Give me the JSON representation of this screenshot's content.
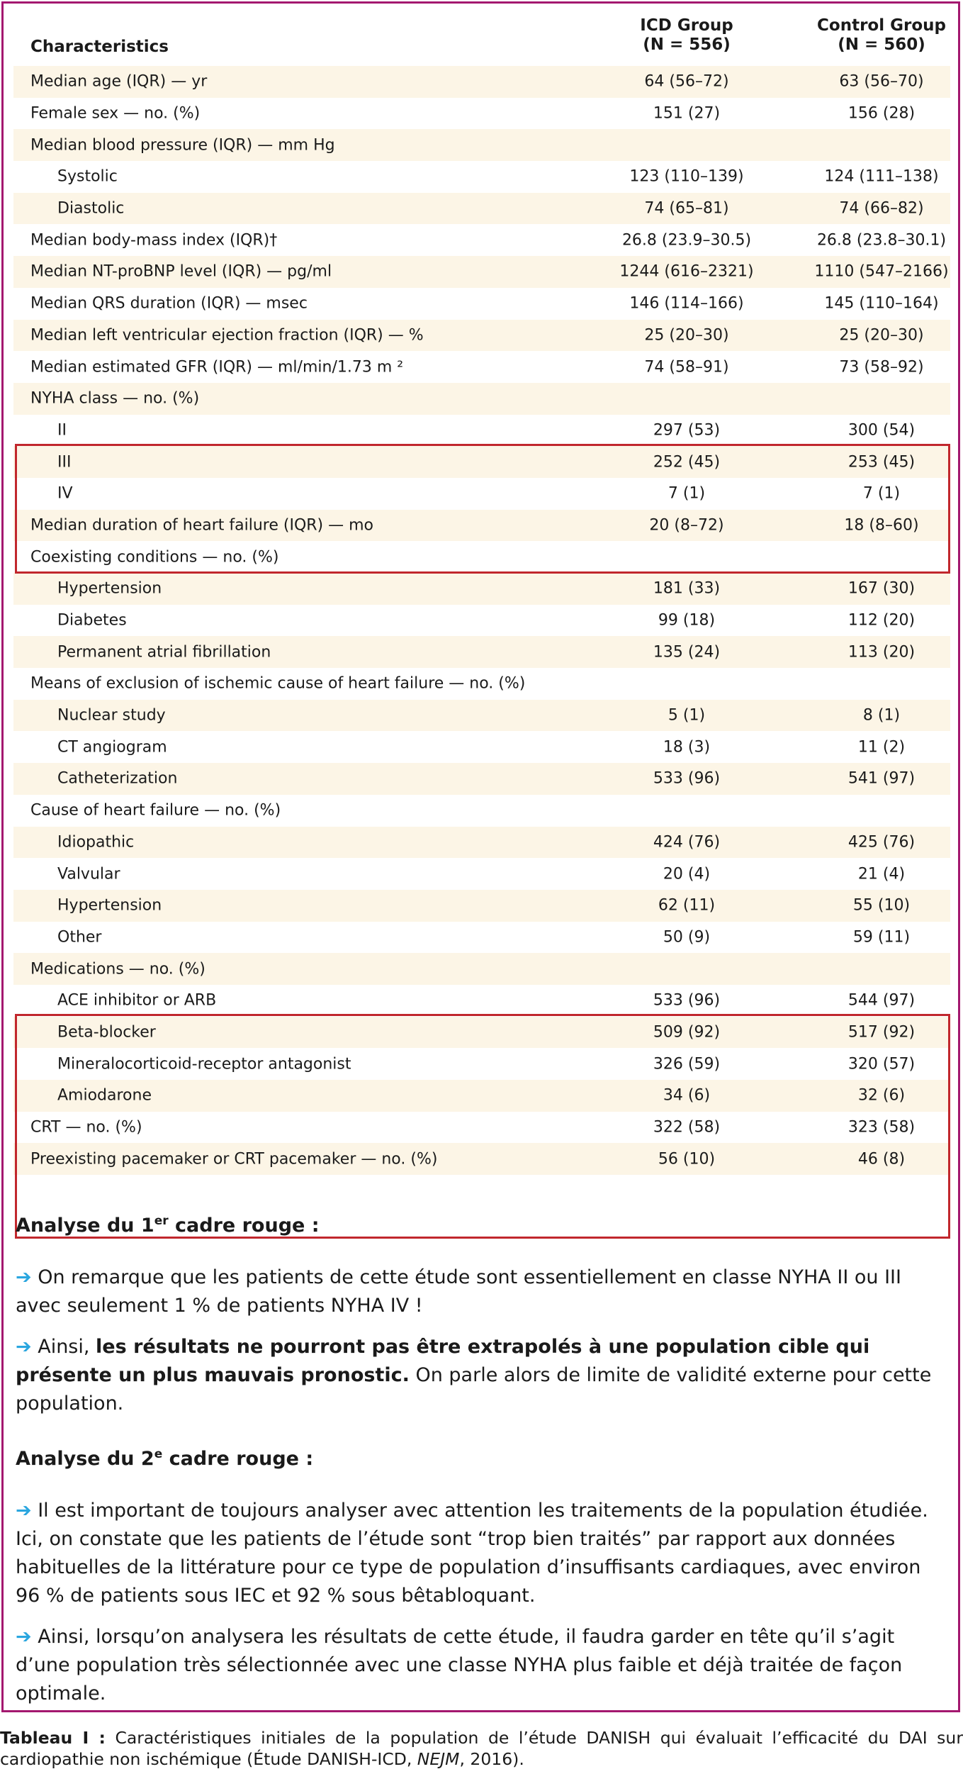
{
  "table": {
    "headers": {
      "characteristics": "Characteristics",
      "icd_line1": "ICD Group",
      "icd_line2": "(N = 556)",
      "control_line1": "Control Group",
      "control_line2": "(N = 560)"
    },
    "rows": [
      {
        "label": "Median age (IQR) — yr",
        "icd": "64 (56–72)",
        "control": "63 (56–70)",
        "indent": false
      },
      {
        "label": "Female sex — no. (%)",
        "icd": "151 (27)",
        "control": "156 (28)",
        "indent": false
      },
      {
        "label": "Median blood pressure (IQR) — mm Hg",
        "icd": "",
        "control": "",
        "indent": false
      },
      {
        "label": "Systolic",
        "icd": "123 (110–139)",
        "control": "124 (111–138)",
        "indent": true
      },
      {
        "label": "Diastolic",
        "icd": "74 (65–81)",
        "control": "74 (66–82)",
        "indent": true
      },
      {
        "label": "Median body-mass index (IQR)†",
        "icd": "26.8 (23.9–30.5)",
        "control": "26.8 (23.8–30.1)",
        "indent": false
      },
      {
        "label": "Median NT-proBNP level (IQR) — pg/ml",
        "icd": "1244 (616–2321)",
        "control": "1110 (547–2166)",
        "indent": false
      },
      {
        "label": "Median QRS duration (IQR) — msec",
        "icd": "146 (114–166)",
        "control": "145 (110–164)",
        "indent": false
      },
      {
        "label": "Median left ventricular ejection fraction (IQR) — %",
        "icd": "25 (20–30)",
        "control": "25 (20–30)",
        "indent": false
      },
      {
        "label": "Median estimated GFR (IQR) — ml/min/1.73 m ²",
        "icd": "74 (58–91)",
        "control": "73 (58–92)",
        "indent": false
      },
      {
        "label": "NYHA class — no. (%)",
        "icd": "",
        "control": "",
        "indent": false
      },
      {
        "label": "II",
        "icd": "297 (53)",
        "control": "300 (54)",
        "indent": true
      },
      {
        "label": "III",
        "icd": "252 (45)",
        "control": "253 (45)",
        "indent": true
      },
      {
        "label": "IV",
        "icd": "7 (1)",
        "control": "7 (1)",
        "indent": true
      },
      {
        "label": "Median duration of heart failure (IQR) — mo",
        "icd": "20 (8–72)",
        "control": "18 (8–60)",
        "indent": false
      },
      {
        "label": "Coexisting conditions — no. (%)",
        "icd": "",
        "control": "",
        "indent": false
      },
      {
        "label": "Hypertension",
        "icd": "181 (33)",
        "control": "167 (30)",
        "indent": true
      },
      {
        "label": "Diabetes",
        "icd": "99 (18)",
        "control": "112 (20)",
        "indent": true
      },
      {
        "label": "Permanent atrial fibrillation",
        "icd": "135 (24)",
        "control": "113 (20)",
        "indent": true
      },
      {
        "label": "Means of exclusion of ischemic cause of heart failure — no. (%)",
        "icd": "",
        "control": "",
        "indent": false
      },
      {
        "label": "Nuclear study",
        "icd": "5 (1)",
        "control": "8 (1)",
        "indent": true
      },
      {
        "label": "CT angiogram",
        "icd": "18 (3)",
        "control": "11 (2)",
        "indent": true
      },
      {
        "label": "Catheterization",
        "icd": "533 (96)",
        "control": "541 (97)",
        "indent": true
      },
      {
        "label": "Cause of heart failure — no. (%)",
        "icd": "",
        "control": "",
        "indent": false
      },
      {
        "label": "Idiopathic",
        "icd": "424 (76)",
        "control": "425 (76)",
        "indent": true
      },
      {
        "label": "Valvular",
        "icd": "20 (4)",
        "control": "21 (4)",
        "indent": true
      },
      {
        "label": "Hypertension",
        "icd": "62 (11)",
        "control": "55 (10)",
        "indent": true
      },
      {
        "label": "Other",
        "icd": "50 (9)",
        "control": "59 (11)",
        "indent": true
      },
      {
        "label": "Medications — no. (%)",
        "icd": "",
        "control": "",
        "indent": false
      },
      {
        "label": "ACE inhibitor or ARB",
        "icd": "533 (96)",
        "control": "544 (97)",
        "indent": true
      },
      {
        "label": "Beta-blocker",
        "icd": "509 (92)",
        "control": "517 (92)",
        "indent": true
      },
      {
        "label": "Mineralocorticoid-receptor antagonist",
        "icd": "326 (59)",
        "control": "320 (57)",
        "indent": true
      },
      {
        "label": "Amiodarone",
        "icd": "34 (6)",
        "control": "32 (6)",
        "indent": true
      },
      {
        "label": "CRT — no. (%)",
        "icd": "322 (58)",
        "control": "323 (58)",
        "indent": false
      },
      {
        "label": "Preexisting pacemaker or CRT pacemaker — no. (%)",
        "icd": "56 (10)",
        "control": "46 (8)",
        "indent": false
      }
    ]
  },
  "analysis": {
    "box1_title_pre": "Analyse du 1",
    "box1_title_sup": "er",
    "box1_title_post": " cadre rouge :",
    "box1_p1": "On remarque que les patients de cette étude sont essentiellement en classe NYHA II ou III avec seulement 1 % de patients NYHA IV !",
    "box1_p2_pre": "Ainsi, ",
    "box1_p2_bold": "les résultats ne pourront pas être extrapolés à une population cible qui présente un plus mauvais pronostic.",
    "box1_p2_post": " On parle alors de limite de validité externe pour cette population.",
    "box2_title_pre": "Analyse du 2",
    "box2_title_sup": "e",
    "box2_title_post": " cadre rouge :",
    "box2_p1": "Il est important de toujours analyser avec attention les traitements de la population étudiée. Ici, on constate que les patients de l’étude sont “trop bien traités” par rapport aux données habituelles de la littérature pour ce type de population d’insuffisants cardiaques, avec environ 96 % de patients sous IEC et 92 % sous bêtabloquant.",
    "box2_p2": "Ainsi, lorsqu’on analysera les résultats de cette étude, il faudra garder en tête qu’il s’agit d’une population très sélectionnée avec une classe NYHA plus faible et déjà traitée de façon optimale.",
    "arrow_glyph": "➔"
  },
  "caption": {
    "label": "Tableau I :",
    "text_pre": " Caractéristiques initiales de la population de l’étude DANISH qui évaluait l’efficacité du DAI sur cardiopathie non ischémique (Étude DANISH-ICD, ",
    "journal": "NEJM",
    "text_post": ", 2016)."
  },
  "colors": {
    "frame": "#a3186f",
    "highlight_box": "#c1272d",
    "row_shade": "#fcf5e6",
    "arrow": "#2aa6df"
  }
}
